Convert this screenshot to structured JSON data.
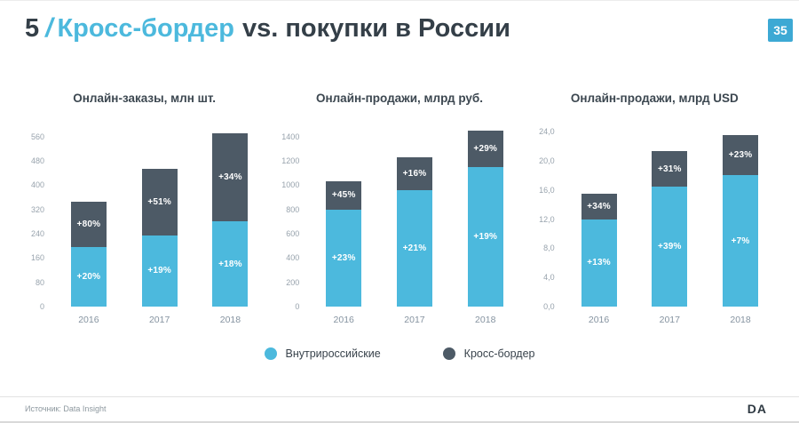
{
  "slide": {
    "number_prefix": "5",
    "slash": "/",
    "title_highlight": "Кросс-бордер",
    "title_rest": "vs. покупки в России",
    "page_number": "35",
    "source": "Источник: Data Insight",
    "logo": "DA"
  },
  "colors": {
    "accent_blue": "#4cb9dd",
    "dark_gray": "#4d5a66",
    "title_dark": "#343f48",
    "badge_blue": "#3da9d4"
  },
  "legend": [
    {
      "label": "Внутрироссийские",
      "color": "#4cb9dd"
    },
    {
      "label": "Кросс-бордер",
      "color": "#4d5a66"
    }
  ],
  "chart_data": [
    {
      "type": "bar",
      "stacked": true,
      "title": "Онлайн-заказы, млн шт.",
      "categories": [
        "2016",
        "2017",
        "2018"
      ],
      "yticks": [
        0,
        80,
        160,
        240,
        320,
        400,
        480,
        560
      ],
      "ytick_labels": [
        "0",
        "80",
        "160",
        "240",
        "320",
        "400",
        "480",
        "560"
      ],
      "ymax": 600,
      "series": [
        {
          "name": "Внутрироссийские",
          "color": "#4cb9dd",
          "values": [
            195,
            235,
            280
          ],
          "labels": [
            "+20%",
            "+19%",
            "+18%"
          ]
        },
        {
          "name": "Кросс-бордер",
          "color": "#4d5a66",
          "values": [
            150,
            220,
            290
          ],
          "labels": [
            "+80%",
            "+51%",
            "+34%"
          ]
        }
      ]
    },
    {
      "type": "bar",
      "stacked": true,
      "title": "Онлайн-продажи, млрд руб.",
      "categories": [
        "2016",
        "2017",
        "2018"
      ],
      "yticks": [
        0,
        200,
        400,
        600,
        800,
        1000,
        1200,
        1400
      ],
      "ytick_labels": [
        "0",
        "200",
        "400",
        "600",
        "800",
        "1000",
        "1200",
        "1400"
      ],
      "ymax": 1500,
      "series": [
        {
          "name": "Внутрироссийские",
          "color": "#4cb9dd",
          "values": [
            800,
            960,
            1150
          ],
          "labels": [
            "+23%",
            "+21%",
            "+19%"
          ]
        },
        {
          "name": "Кросс-бордер",
          "color": "#4d5a66",
          "values": [
            230,
            270,
            300
          ],
          "labels": [
            "+45%",
            "+16%",
            "+29%"
          ]
        }
      ]
    },
    {
      "type": "bar",
      "stacked": true,
      "title": "Онлайн-продажи, млрд USD",
      "categories": [
        "2016",
        "2017",
        "2018"
      ],
      "yticks": [
        0,
        4,
        8,
        12,
        16,
        20,
        24
      ],
      "ytick_labels": [
        "0,0",
        "4,0",
        "8,0",
        "12,0",
        "16,0",
        "20,0",
        "24,0"
      ],
      "ymax": 25,
      "series": [
        {
          "name": "Внутрироссийские",
          "color": "#4cb9dd",
          "values": [
            12,
            16.5,
            18
          ],
          "labels": [
            "+13%",
            "+39%",
            "+7%"
          ]
        },
        {
          "name": "Кросс-бордер",
          "color": "#4d5a66",
          "values": [
            3.5,
            4.8,
            5.5
          ],
          "labels": [
            "+34%",
            "+31%",
            "+23%"
          ]
        }
      ]
    }
  ]
}
